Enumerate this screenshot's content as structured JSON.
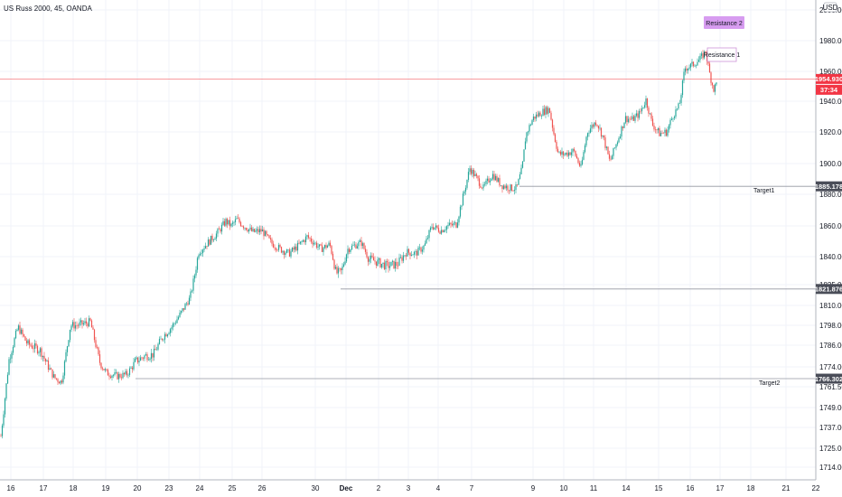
{
  "header": {
    "title": "US Russ 2000, 45, OANDA",
    "currency": "USD"
  },
  "colors": {
    "up": "#26a69a",
    "down": "#ef5350",
    "current_line": "#f77c80",
    "level_line": "#9598a1",
    "tag_dark": "#4a4d58",
    "tag_red": "#f23645",
    "resistance2_fill": "#d79cf0",
    "resistance1_border": "#ce93d8"
  },
  "chart_data": {
    "type": "candlestick",
    "instrument": "US Russ 2000",
    "timeframe": "45",
    "source": "OANDA",
    "ylim": [
      1712,
      2002
    ],
    "x_ticks": [
      "16",
      "17",
      "18",
      "19",
      "20",
      "23",
      "24",
      "25",
      "26",
      "30",
      "Dec",
      "2",
      "3",
      "4",
      "7",
      "9",
      "10",
      "11",
      "14",
      "15",
      "16",
      "17",
      "18",
      "21",
      "22"
    ],
    "y_ticks": [
      {
        "value": 1714,
        "label": "1714.000"
      },
      {
        "value": 1725,
        "label": "1725.000"
      },
      {
        "value": 1737,
        "label": "1737.000"
      },
      {
        "value": 1749,
        "label": "1749.000"
      },
      {
        "value": 1761,
        "label": "1761.500"
      },
      {
        "value": 1774,
        "label": "1774.000"
      },
      {
        "value": 1786,
        "label": "1786.000"
      },
      {
        "value": 1798,
        "label": "1798.000"
      },
      {
        "value": 1810,
        "label": "1810.000"
      },
      {
        "value": 1825,
        "label": "1825.000"
      },
      {
        "value": 1840,
        "label": "1840.000"
      },
      {
        "value": 1860,
        "label": "1860.000"
      },
      {
        "value": 1880,
        "label": "1880.000"
      },
      {
        "value": 1900,
        "label": "1900.000"
      },
      {
        "value": 1920,
        "label": "1920.000"
      },
      {
        "value": 1940,
        "label": "1940.000"
      },
      {
        "value": 1960,
        "label": "1960.000"
      },
      {
        "value": 1980,
        "label": "1980.000"
      },
      {
        "value": 2000,
        "label": "2000.000"
      }
    ],
    "price_path": [
      [
        0,
        1727
      ],
      [
        5,
        1752
      ],
      [
        10,
        1778
      ],
      [
        20,
        1797
      ],
      [
        30,
        1787
      ],
      [
        45,
        1783
      ],
      [
        60,
        1767
      ],
      [
        68,
        1764
      ],
      [
        78,
        1798
      ],
      [
        85,
        1798
      ],
      [
        100,
        1800
      ],
      [
        110,
        1777
      ],
      [
        118,
        1770
      ],
      [
        130,
        1768
      ],
      [
        140,
        1769
      ],
      [
        150,
        1777
      ],
      [
        160,
        1780
      ],
      [
        170,
        1781
      ],
      [
        180,
        1791
      ],
      [
        190,
        1797
      ],
      [
        200,
        1805
      ],
      [
        210,
        1815
      ],
      [
        220,
        1843
      ],
      [
        230,
        1849
      ],
      [
        240,
        1855
      ],
      [
        250,
        1863
      ],
      [
        256,
        1860
      ],
      [
        262,
        1864
      ],
      [
        270,
        1860
      ],
      [
        280,
        1856
      ],
      [
        290,
        1857
      ],
      [
        300,
        1849
      ],
      [
        310,
        1845
      ],
      [
        320,
        1842
      ],
      [
        330,
        1847
      ],
      [
        340,
        1853
      ],
      [
        348,
        1849
      ],
      [
        355,
        1845
      ],
      [
        365,
        1848
      ],
      [
        372,
        1831
      ],
      [
        378,
        1832
      ],
      [
        385,
        1845
      ],
      [
        395,
        1848
      ],
      [
        400,
        1849
      ],
      [
        408,
        1839
      ],
      [
        418,
        1837
      ],
      [
        428,
        1835
      ],
      [
        440,
        1836
      ],
      [
        450,
        1843
      ],
      [
        460,
        1842
      ],
      [
        470,
        1847
      ],
      [
        478,
        1860
      ],
      [
        488,
        1857
      ],
      [
        495,
        1860
      ],
      [
        505,
        1861
      ],
      [
        512,
        1877
      ],
      [
        520,
        1897
      ],
      [
        528,
        1890
      ],
      [
        535,
        1884
      ],
      [
        545,
        1893
      ],
      [
        555,
        1886
      ],
      [
        565,
        1884
      ],
      [
        572,
        1884
      ],
      [
        578,
        1897
      ],
      [
        582,
        1918
      ],
      [
        590,
        1929
      ],
      [
        600,
        1933
      ],
      [
        608,
        1935
      ],
      [
        613,
        1919
      ],
      [
        618,
        1906
      ],
      [
        625,
        1906
      ],
      [
        635,
        1908
      ],
      [
        643,
        1897
      ],
      [
        650,
        1920
      ],
      [
        660,
        1927
      ],
      [
        668,
        1916
      ],
      [
        675,
        1901
      ],
      [
        685,
        1917
      ],
      [
        692,
        1929
      ],
      [
        700,
        1928
      ],
      [
        708,
        1932
      ],
      [
        715,
        1941
      ],
      [
        722,
        1925
      ],
      [
        730,
        1919
      ],
      [
        738,
        1920
      ],
      [
        745,
        1931
      ],
      [
        752,
        1937
      ],
      [
        758,
        1962
      ],
      [
        766,
        1964
      ],
      [
        775,
        1968
      ],
      [
        781,
        1973
      ],
      [
        786,
        1957
      ],
      [
        790,
        1948
      ],
      [
        794,
        1953
      ]
    ],
    "levels": [
      {
        "label": "Target1",
        "value": 1885.178,
        "tag": "1885.178"
      },
      {
        "label": "Target2",
        "value": 1766.302,
        "tag": "1766.302"
      },
      {
        "value": 1821.876,
        "tag": "1821.876"
      }
    ],
    "current_price": {
      "value": 1954.93,
      "tag": "1954.930",
      "countdown": "37:34"
    },
    "annotations": [
      {
        "label": "Resistance 2",
        "value": 1990
      },
      {
        "label": "Resistance 1",
        "value": 1968
      }
    ],
    "grid": true
  }
}
